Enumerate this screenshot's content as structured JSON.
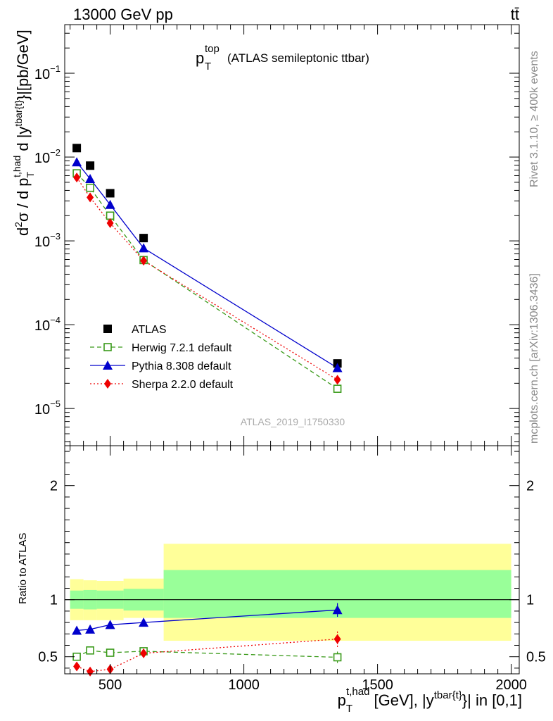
{
  "header": {
    "left": "13000 GeV pp",
    "right": "tt̄"
  },
  "side_labels": {
    "rivet": "Rivet 3.1.10, ≥ 400k events",
    "mcplots": "mcplots.cern.ch [arXiv:1306.3436]"
  },
  "watermark": "ATLAS_2019_I1750330",
  "colors": {
    "atlas": "#000000",
    "herwig": "#3a9a1a",
    "pythia": "#0000cc",
    "sherpa": "#ee0000",
    "band_inner": "#99ff99",
    "band_outer": "#ffff99"
  },
  "chart_data": [
    {
      "type": "scatter",
      "title": {
        "main": "p",
        "sub": "T",
        "sup": "top",
        "rest": "(ATLAS semileptonic ttbar)"
      },
      "ylabel": "d²σ / d p_T^{t,had} d |y^{tbar{t}}|[pb/GeV]",
      "yscale": "log",
      "xlim": [
        330,
        2030
      ],
      "ylim": [
        3.6e-06,
        0.38
      ],
      "y_ticks": [
        {
          "value": 1e-05,
          "base": "10",
          "exp": "−5"
        },
        {
          "value": 0.0001,
          "base": "10",
          "exp": "−4"
        },
        {
          "value": 0.001,
          "base": "10",
          "exp": "−3"
        },
        {
          "value": 0.01,
          "base": "10",
          "exp": "−2"
        },
        {
          "value": 0.1,
          "base": "10",
          "exp": "−1"
        }
      ],
      "legend_position": "lower-left",
      "series": [
        {
          "key": "atlas",
          "name": "ATLAS",
          "marker": "square-filled",
          "line": "none",
          "x": [
            375,
            425,
            500,
            625,
            1350
          ],
          "y": [
            0.0128,
            0.0079,
            0.0037,
            0.00108,
            3.45e-05
          ]
        },
        {
          "key": "herwig",
          "name": "Herwig 7.2.1 default",
          "marker": "square-open",
          "line": "dashed",
          "x": [
            375,
            425,
            500,
            625,
            1350
          ],
          "y": [
            0.0064,
            0.0043,
            0.002,
            0.00059,
            1.72e-05
          ]
        },
        {
          "key": "pythia",
          "name": "Pythia 8.308 default",
          "marker": "triangle",
          "line": "solid",
          "x": [
            375,
            425,
            500,
            625,
            1350
          ],
          "y": [
            0.0087,
            0.0055,
            0.0027,
            0.00082,
            3.05e-05
          ]
        },
        {
          "key": "sherpa",
          "name": "Sherpa 2.2.0 default",
          "marker": "diamond",
          "line": "dotted",
          "x": [
            375,
            425,
            500,
            625,
            1350
          ],
          "y": [
            0.0057,
            0.0033,
            0.00163,
            0.00058,
            2.2e-05
          ]
        }
      ]
    },
    {
      "type": "scatter",
      "ylabel": "Ratio to ATLAS",
      "xlabel": "p_T^{t,had} [GeV], |y^{tbar{t}}| in [0,1]",
      "xlim": [
        330,
        2030
      ],
      "ylim": [
        0.35,
        2.35
      ],
      "x_ticks": [
        500,
        1000,
        1500,
        2000
      ],
      "y_ticks": [
        0.5,
        1,
        2
      ],
      "reference_line": 1,
      "bands": [
        {
          "x0": 350,
          "x1": 400,
          "inner": [
            0.92,
            1.08
          ],
          "outer": [
            0.82,
            1.18
          ]
        },
        {
          "x0": 400,
          "x1": 450,
          "inner": [
            0.915,
            1.085
          ],
          "outer": [
            0.82,
            1.17
          ]
        },
        {
          "x0": 450,
          "x1": 550,
          "inner": [
            0.92,
            1.08
          ],
          "outer": [
            0.82,
            1.165
          ]
        },
        {
          "x0": 550,
          "x1": 700,
          "inner": [
            0.905,
            1.095
          ],
          "outer": [
            0.84,
            1.185
          ]
        },
        {
          "x0": 700,
          "x1": 2000,
          "inner": [
            0.84,
            1.26
          ],
          "outer": [
            0.64,
            1.49
          ]
        }
      ],
      "series": [
        {
          "key": "herwig",
          "name": "Herwig 7.2.1 default",
          "marker": "square-open",
          "line": "dashed",
          "x": [
            375,
            425,
            500,
            625,
            1350
          ],
          "y": [
            0.5,
            0.555,
            0.535,
            0.548,
            0.495
          ],
          "yerr": [
            0.012,
            0.012,
            0.012,
            0.018,
            0.05
          ]
        },
        {
          "key": "pythia",
          "name": "Pythia 8.308 default",
          "marker": "triangle",
          "line": "solid",
          "x": [
            375,
            425,
            500,
            625,
            1350
          ],
          "y": [
            0.73,
            0.74,
            0.78,
            0.8,
            0.91
          ],
          "yerr": [
            0.012,
            0.015,
            0.02,
            0.025,
            0.06
          ]
        },
        {
          "key": "sherpa",
          "name": "Sherpa 2.2.0 default",
          "marker": "diamond",
          "line": "dotted",
          "x": [
            375,
            425,
            500,
            625,
            1350
          ],
          "y": [
            0.415,
            0.37,
            0.39,
            0.53,
            0.655
          ],
          "yerr": [
            0.015,
            0.015,
            0.02,
            0.025,
            0.07
          ]
        }
      ]
    }
  ]
}
